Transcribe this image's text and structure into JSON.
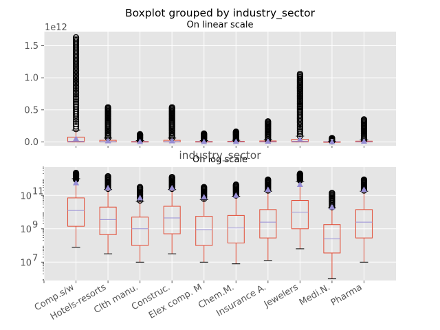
{
  "figure": {
    "title": "Boxplot grouped by industry_sector",
    "xlabel": "industry_sector"
  },
  "chart_data": [
    {
      "type": "box",
      "title": "On linear scale",
      "xlabel": "",
      "ylabel": "",
      "y_scale": "linear",
      "y_multiplier_label": "1e12",
      "ylim": [
        -0.06,
        1.72
      ],
      "yticks": [
        0.0,
        0.5,
        1.0,
        1.5
      ],
      "ytick_labels": [
        "0.0",
        "0.5",
        "1.0",
        "1.5"
      ],
      "grid": true,
      "background": "#E5E5E5",
      "box_color": "#E24A33",
      "median_color": "#988ED5",
      "mean_marker_color": "#988ED5",
      "series": [
        {
          "wl": 0.0,
          "q1": 0.0,
          "med": 0.01,
          "q3": 0.075,
          "wh": 0.185,
          "outliers": {
            "from": 0.2,
            "to": 1.63,
            "n": 60
          },
          "mean": 0.05
        },
        {
          "wl": 0.0,
          "q1": 0.0,
          "med": 0.005,
          "q3": 0.025,
          "wh": 0.06,
          "outliers": {
            "from": 0.06,
            "to": 0.54,
            "n": 30
          },
          "mean": 0.015
        },
        {
          "wl": 0.0,
          "q1": 0.0,
          "med": 0.002,
          "q3": 0.008,
          "wh": 0.02,
          "outliers": {
            "from": 0.02,
            "to": 0.12,
            "n": 12
          },
          "mean": 0.005
        },
        {
          "wl": 0.0,
          "q1": 0.0,
          "med": 0.005,
          "q3": 0.025,
          "wh": 0.06,
          "outliers": {
            "from": 0.06,
            "to": 0.54,
            "n": 30
          },
          "mean": 0.015
        },
        {
          "wl": 0.0,
          "q1": 0.0,
          "med": 0.002,
          "q3": 0.008,
          "wh": 0.02,
          "outliers": {
            "from": 0.02,
            "to": 0.13,
            "n": 12
          },
          "mean": 0.005
        },
        {
          "wl": 0.0,
          "q1": 0.0,
          "med": 0.002,
          "q3": 0.01,
          "wh": 0.025,
          "outliers": {
            "from": 0.025,
            "to": 0.16,
            "n": 14
          },
          "mean": 0.006
        },
        {
          "wl": 0.0,
          "q1": 0.0,
          "med": 0.004,
          "q3": 0.015,
          "wh": 0.035,
          "outliers": {
            "from": 0.035,
            "to": 0.32,
            "n": 20
          },
          "mean": 0.01
        },
        {
          "wl": 0.0,
          "q1": 0.0,
          "med": 0.01,
          "q3": 0.04,
          "wh": 0.09,
          "outliers": {
            "from": 0.09,
            "to": 1.06,
            "n": 50
          },
          "mean": 0.04
        },
        {
          "wl": 0.0,
          "q1": 0.0,
          "med": 0.001,
          "q3": 0.004,
          "wh": 0.01,
          "outliers": {
            "from": 0.01,
            "to": 0.06,
            "n": 8
          },
          "mean": 0.002
        },
        {
          "wl": 0.0,
          "q1": 0.0,
          "med": 0.003,
          "q3": 0.012,
          "wh": 0.03,
          "outliers": {
            "from": 0.03,
            "to": 0.35,
            "n": 22
          },
          "mean": 0.01
        }
      ]
    },
    {
      "type": "box",
      "title": "On log scale",
      "xlabel": "",
      "ylabel": "",
      "y_scale": "log",
      "ylim_log10": [
        5.9,
        12.7
      ],
      "yticks_log10": [
        7,
        9,
        11
      ],
      "ytick_labels": [
        {
          "base": "10",
          "exp": "7"
        },
        {
          "base": "10",
          "exp": "9"
        },
        {
          "base": "10",
          "exp": "11"
        }
      ],
      "grid": true,
      "background": "#E5E5E5",
      "box_color": "#E24A33",
      "median_color": "#988ED5",
      "mean_marker_color": "#988ED5",
      "categories": [
        "Comp.s/w",
        "Hotels-resorts",
        "Clth manu.",
        "Construc.",
        "Elex comp. M",
        "Chem.M.",
        "Insurance A.",
        "Jewelers",
        "Medi.N.",
        "Pharma"
      ],
      "series": [
        {
          "wl": 7.9,
          "q1": 9.15,
          "med": 10.1,
          "q3": 10.85,
          "wh": 12.0,
          "outliers": {
            "from": 11.95,
            "to": 12.35,
            "n": 14
          },
          "mean": 11.75
        },
        {
          "wl": 7.5,
          "q1": 8.65,
          "med": 9.55,
          "q3": 10.3,
          "wh": 11.35,
          "outliers": {
            "from": 11.4,
            "to": 12.15,
            "n": 14
          },
          "mean": 11.45
        },
        {
          "wl": 7.0,
          "q1": 8.0,
          "med": 9.0,
          "q3": 9.7,
          "wh": 10.65,
          "outliers": {
            "from": 10.7,
            "to": 11.5,
            "n": 14
          },
          "mean": 10.85
        },
        {
          "wl": 7.5,
          "q1": 8.7,
          "med": 9.65,
          "q3": 10.35,
          "wh": 11.35,
          "outliers": {
            "from": 11.4,
            "to": 12.1,
            "n": 14
          },
          "mean": 11.45
        },
        {
          "wl": 7.0,
          "q1": 8.0,
          "med": 8.95,
          "q3": 9.75,
          "wh": 10.75,
          "outliers": {
            "from": 10.8,
            "to": 11.5,
            "n": 14
          },
          "mean": 10.9
        },
        {
          "wl": 6.9,
          "q1": 8.15,
          "med": 9.05,
          "q3": 9.8,
          "wh": 10.95,
          "outliers": {
            "from": 11.0,
            "to": 11.65,
            "n": 14
          },
          "mean": 11.0
        },
        {
          "wl": 7.1,
          "q1": 8.45,
          "med": 9.4,
          "q3": 10.15,
          "wh": 11.25,
          "outliers": {
            "from": 11.3,
            "to": 11.95,
            "n": 14
          },
          "mean": 11.35
        },
        {
          "wl": 7.8,
          "q1": 9.0,
          "med": 10.0,
          "q3": 10.7,
          "wh": 11.85,
          "outliers": {
            "from": 11.9,
            "to": 12.3,
            "n": 14
          },
          "mean": 11.65
        },
        {
          "wl": 6.0,
          "q1": 7.55,
          "med": 8.4,
          "q3": 9.25,
          "wh": 10.25,
          "outliers": {
            "from": 10.3,
            "to": 11.15,
            "n": 14
          },
          "mean": 10.3
        },
        {
          "wl": 7.0,
          "q1": 8.45,
          "med": 9.4,
          "q3": 10.15,
          "wh": 11.25,
          "outliers": {
            "from": 11.3,
            "to": 11.95,
            "n": 14
          },
          "mean": 11.35
        }
      ]
    }
  ]
}
